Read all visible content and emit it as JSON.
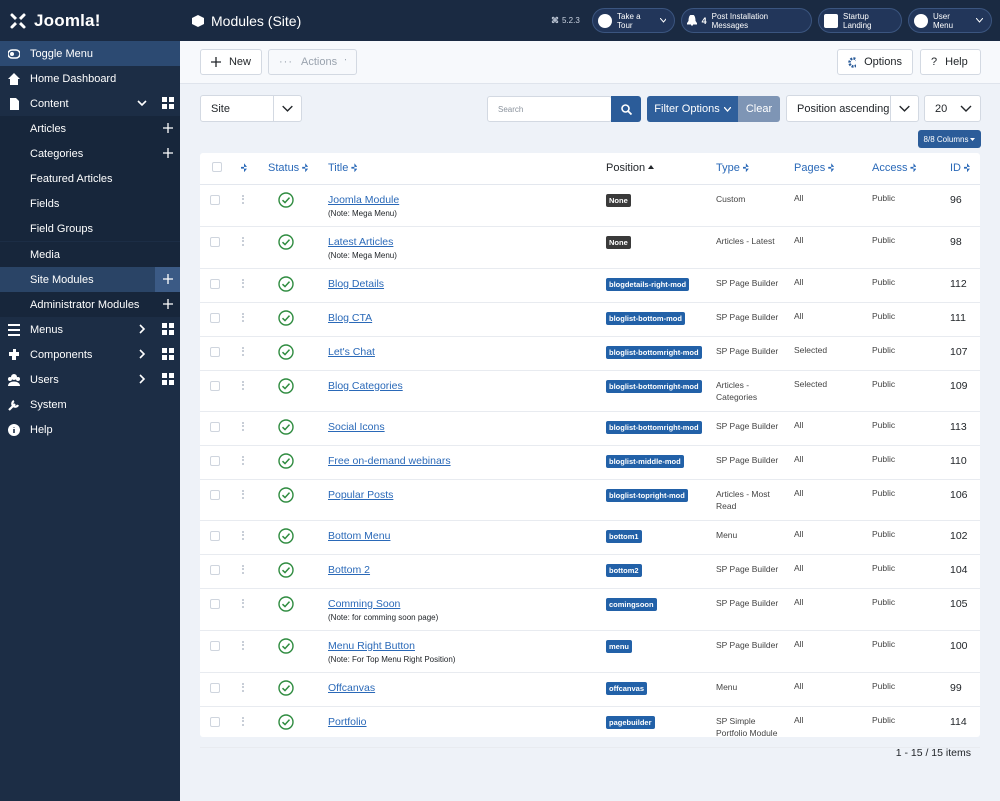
{
  "sidebar": {
    "logo": "Joomla!",
    "items": [
      "Toggle Menu",
      "Home Dashboard",
      "Content",
      "Articles",
      "Categories",
      "Featured Articles",
      "Fields",
      "Field Groups",
      "Media",
      "Site Modules",
      "Administrator Modules",
      "Menus",
      "Components",
      "Users",
      "System",
      "Help"
    ]
  },
  "header": {
    "title": "Modules (Site)",
    "version": "5.2.3",
    "take_tour": "Take a Tour",
    "notification_count": 4,
    "post_install": "Post Installation Messages",
    "startup": "Startup Landing",
    "user_menu": "User Menu"
  },
  "toolbar": {
    "new": "New",
    "actions": "Actions",
    "options": "Options",
    "help": "Help"
  },
  "filters": {
    "client": "Site",
    "search_placeholder": "Search",
    "filter_options": "Filter Options",
    "clear": "Clear",
    "ordering": "Position ascending",
    "limit": 20,
    "columns": "8/8 Columns"
  },
  "table": {
    "headers": [
      "Status",
      "Title",
      "Position",
      "Type",
      "Pages",
      "Access",
      "ID"
    ],
    "rows": [
      {
        "title": "Joomla Module",
        "note": "(Note: Mega Menu)",
        "position": "None",
        "type": "Custom",
        "pages": "All",
        "access": "Public",
        "id": 96
      },
      {
        "title": "Latest Articles",
        "note": "(Note: Mega Menu)",
        "position": "None",
        "type": "Articles - Latest",
        "pages": "All",
        "access": "Public",
        "id": 98
      },
      {
        "title": "Blog Details",
        "position": "blogdetails-right-mod",
        "type": "SP Page Builder",
        "pages": "All",
        "access": "Public",
        "id": 112
      },
      {
        "title": "Blog CTA",
        "position": "bloglist-bottom-mod",
        "type": "SP Page Builder",
        "pages": "All",
        "access": "Public",
        "id": 111
      },
      {
        "title": "Let's Chat",
        "position": "bloglist-bottomright-mod",
        "type": "SP Page Builder",
        "pages": "Selected",
        "access": "Public",
        "id": 107
      },
      {
        "title": "Blog Categories",
        "position": "bloglist-bottomright-mod",
        "type": "Articles - Categories",
        "pages": "Selected",
        "access": "Public",
        "id": 109
      },
      {
        "title": "Social Icons",
        "position": "bloglist-bottomright-mod",
        "type": "SP Page Builder",
        "pages": "All",
        "access": "Public",
        "id": 113
      },
      {
        "title": "Free on-demand webinars",
        "position": "bloglist-middle-mod",
        "type": "SP Page Builder",
        "pages": "All",
        "access": "Public",
        "id": 110
      },
      {
        "title": "Popular Posts",
        "position": "bloglist-topright-mod",
        "type": "Articles - Most Read",
        "pages": "All",
        "access": "Public",
        "id": 106
      },
      {
        "title": "Bottom Menu",
        "position": "bottom1",
        "type": "Menu",
        "pages": "All",
        "access": "Public",
        "id": 102
      },
      {
        "title": "Bottom 2",
        "position": "bottom2",
        "type": "SP Page Builder",
        "pages": "All",
        "access": "Public",
        "id": 104
      },
      {
        "title": "Comming Soon",
        "note": "(Note: for comming soon page)",
        "position": "comingsoon",
        "type": "SP Page Builder",
        "pages": "All",
        "access": "Public",
        "id": 105
      },
      {
        "title": "Menu Right Button",
        "note": "(Note: For Top Menu Right Position)",
        "position": "menu",
        "type": "SP Page Builder",
        "pages": "All",
        "access": "Public",
        "id": 100
      },
      {
        "title": "Offcanvas",
        "position": "offcanvas",
        "type": "Menu",
        "pages": "All",
        "access": "Public",
        "id": 99
      },
      {
        "title": "Portfolio",
        "position": "pagebuilder",
        "type": "SP Simple Portfolio Module",
        "pages": "All",
        "access": "Public",
        "id": 114
      }
    ]
  },
  "pagination": "1 - 15 / 15 items"
}
